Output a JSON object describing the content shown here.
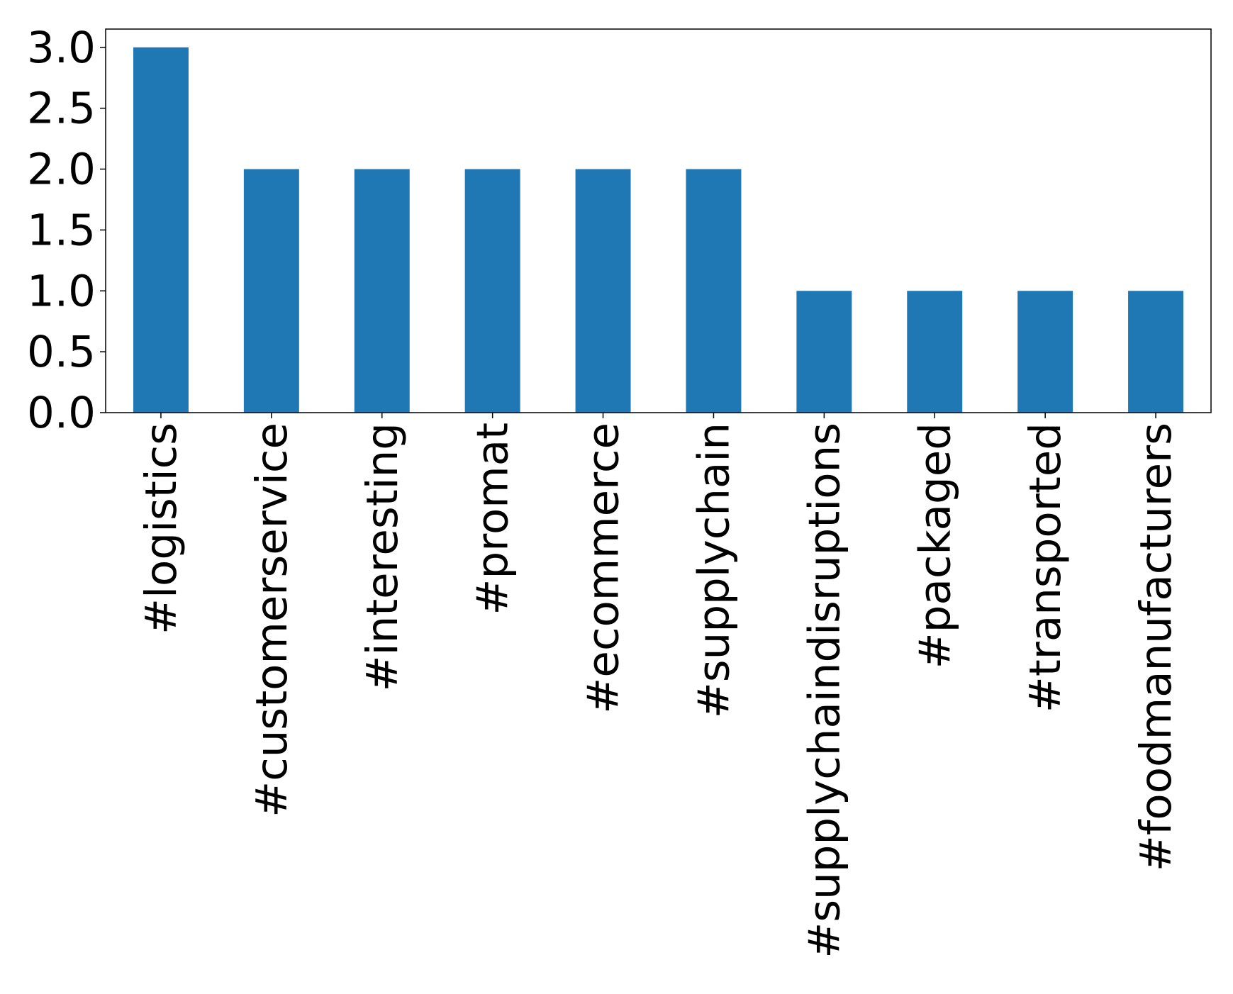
{
  "chart_data": {
    "type": "bar",
    "categories": [
      "#logistics",
      "#customerservice",
      "#interesting",
      "#promat",
      "#ecommerce",
      "#supplychain",
      "#supplychaindisruptions",
      "#packaged",
      "#transported",
      "#foodmanufacturers"
    ],
    "values": [
      3,
      2,
      2,
      2,
      2,
      2,
      1,
      1,
      1,
      1
    ],
    "color": "#1f77b4",
    "ylim": [
      0,
      3.15
    ],
    "yticks": [
      {
        "value": 0,
        "label": "0.0"
      },
      {
        "value": 0.5,
        "label": "0.5"
      },
      {
        "value": 1,
        "label": "1.0"
      },
      {
        "value": 1.5,
        "label": "1.5"
      },
      {
        "value": 2,
        "label": "2.0"
      },
      {
        "value": 2.5,
        "label": "2.5"
      },
      {
        "value": 3,
        "label": "3.0"
      }
    ],
    "grid": false
  }
}
